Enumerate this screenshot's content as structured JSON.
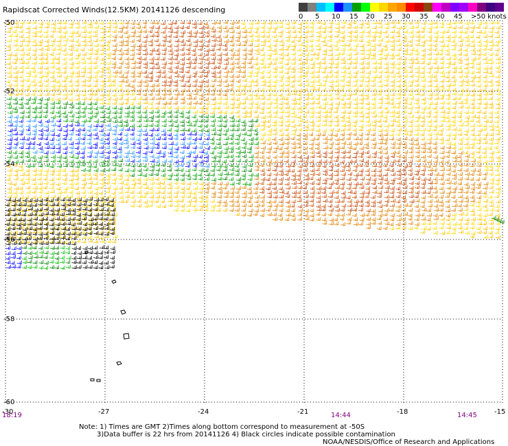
{
  "title": "Rapidscat Corrected Winds(12.5KM) 20141126 descending",
  "legend": {
    "labels": [
      "0",
      "5",
      "10",
      "15",
      "20",
      "25",
      "30",
      "35",
      "40",
      "45",
      ">50 knots"
    ],
    "colors": [
      "#404040",
      "#808080",
      "#00bfff",
      "#00ffff",
      "#0000ff",
      "#1e90ff",
      "#00a000",
      "#00ff00",
      "#ffff00",
      "#ffd700",
      "#ffa500",
      "#ff8c00",
      "#ff0000",
      "#d00000",
      "#8b4513",
      "#ff00ff",
      "#c000c0",
      "#8000ff",
      "#a000ff",
      "#ff00c0",
      "#800080",
      "#400080",
      "#600090"
    ]
  },
  "map": {
    "lat_labels": [
      "-50",
      "-52",
      "-54",
      "-56",
      "-58",
      "-60"
    ],
    "lon_labels": [
      "-30",
      "-27",
      "-24",
      "-21",
      "-18",
      "-15"
    ],
    "time_labels": [
      "18:19",
      "14:44",
      "14:45"
    ]
  },
  "notes": {
    "line1": "Note: 1) Times are GMT 2)Times along bottom correspond to measurement at -50S",
    "line2": "3)Data buffer is 22 hrs from 20141126 4) Black circles indicate possible contamination",
    "credit": "NOAA/NESDIS/Office of Research and Applications"
  }
}
